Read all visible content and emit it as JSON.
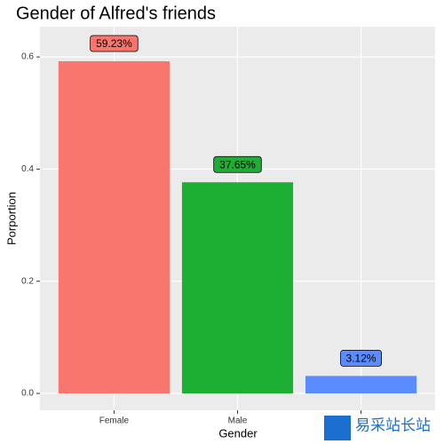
{
  "chart_data": {
    "type": "bar",
    "title": "Gender of Alfred's friends",
    "x_label": "Gender",
    "y_label": "Porportion",
    "categories": [
      "Female",
      "Male",
      null
    ],
    "values": [
      0.5923,
      0.3765,
      0.0312
    ],
    "value_labels": [
      "59.23%",
      "37.65%",
      "3.12%"
    ],
    "colors": [
      "#f8766d",
      "#1daf34",
      "#5b8cff"
    ],
    "ylim": [
      -0.03,
      0.654
    ],
    "yticks": [
      0.6,
      0.4,
      0.2,
      {
        "value": 0,
        "label": "0.0"
      }
    ],
    "grid": true,
    "watermark": "易采站长站"
  }
}
